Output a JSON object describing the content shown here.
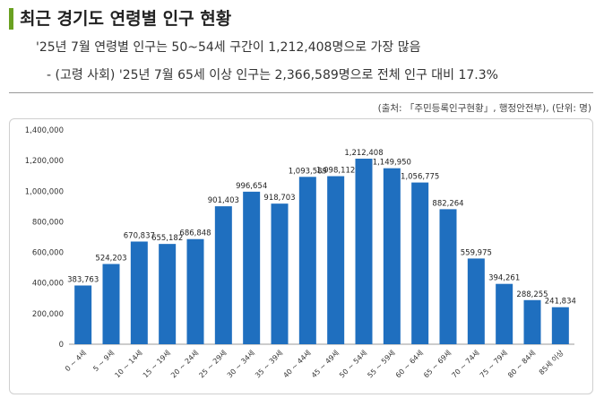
{
  "header": {
    "title": "최근 경기도 연령별 인구 현황",
    "line1": "'25년 7월 연령별 인구는 50~54세 구간이 1,212,408명으로 가장 많음",
    "line2": "- (고령 사회) '25년 7월 65세 이상 인구는 2,366,589명으로 전체 인구 대비 17.3%",
    "source": "(출처: 「주민등록인구현황」, 행정안전부), (단위: 명)",
    "accent_color": "#6aa121"
  },
  "chart_data": {
    "type": "bar",
    "categories": [
      "0 ~ 4세",
      "5 ~ 9세",
      "10 ~ 14세",
      "15 ~ 19세",
      "20 ~ 24세",
      "25 ~ 29세",
      "30 ~ 34세",
      "35 ~ 39세",
      "40 ~ 44세",
      "45 ~ 49세",
      "50 ~ 54세",
      "55 ~ 59세",
      "60 ~ 64세",
      "65 ~ 69세",
      "70 ~ 74세",
      "75 ~ 79세",
      "80 ~ 84세",
      "85세 이상"
    ],
    "values": [
      383763,
      524203,
      670837,
      655182,
      686848,
      901403,
      996654,
      918703,
      1093589,
      1098112,
      1212408,
      1149950,
      1056775,
      882264,
      559975,
      394261,
      288255,
      241834
    ],
    "value_labels": [
      "383,763",
      "524,203",
      "670,837",
      "655,182",
      "686,848",
      "901,403",
      "996,654",
      "918,703",
      "1,093,589",
      "1,098,112",
      "1,212,408",
      "1,149,950",
      "1,056,775",
      "882,264",
      "559,975",
      "394,261",
      "288,255",
      "241,834"
    ],
    "yticks": [
      0,
      200000,
      400000,
      600000,
      800000,
      1000000,
      1200000,
      1400000
    ],
    "ytick_labels": [
      "0",
      "200,000",
      "400,000",
      "600,000",
      "800,000",
      "1,000,000",
      "1,200,000",
      "1,400,000"
    ],
    "ylim": [
      0,
      1400000
    ],
    "bar_color": "#1f6fbf",
    "grid": false
  }
}
